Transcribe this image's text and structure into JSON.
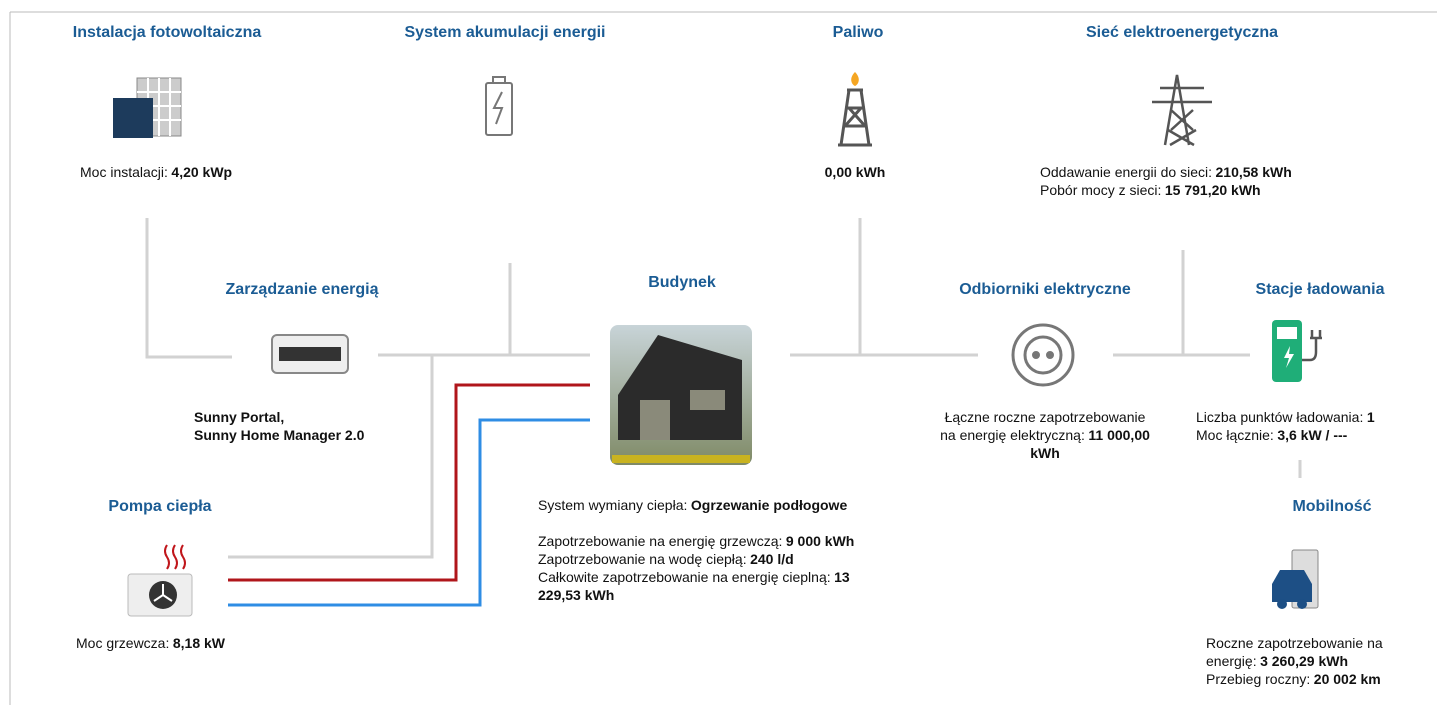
{
  "nodes": [
    {
      "title": "Instalacja fotowoltaiczna",
      "lines": [
        {
          "label": "Moc instalacji:",
          "value": "4,20 kWp"
        }
      ]
    },
    {
      "title": "System akumulacji energii"
    },
    {
      "title": "Paliwo",
      "lines": [
        {
          "value": "0,00 kWh"
        }
      ]
    },
    {
      "title": "Sieć elektroenergetyczna",
      "lines": [
        {
          "label": "Oddawanie energii do sieci:",
          "value": "210,58 kWh"
        },
        {
          "label": "Pobór mocy z sieci:",
          "value": "15 791,20 kWh"
        }
      ]
    },
    {
      "title": "Zarządzanie energią",
      "lines": [
        {
          "value": "Sunny Portal,"
        },
        {
          "value": "Sunny Home Manager 2.0"
        }
      ]
    },
    {
      "title": "Budynek",
      "lines": [
        {
          "label": "System wymiany ciepła:",
          "value": "Ogrzewanie podłogowe"
        },
        {
          "label": "Zapotrzebowanie na energię grzewczą:",
          "value": "9 000 kWh"
        },
        {
          "label": "Zapotrzebowanie na wodę ciepłą:",
          "value": "240 l/d"
        },
        {
          "label": "Całkowite zapotrzebowanie na energię cieplną:",
          "value": "13 229,53 kWh"
        }
      ]
    },
    {
      "title": "Odbiorniki elektryczne",
      "lines": [
        {
          "label": "Łączne roczne zapotrzebowanie na energię elektryczną:",
          "value": "11 000,00 kWh"
        }
      ]
    },
    {
      "title": "Stacje ładowania",
      "lines": [
        {
          "label": "Liczba punktów ładowania:",
          "value": "1"
        },
        {
          "label": "Moc łącznie:",
          "value": "3,6 kW / ---"
        }
      ]
    },
    {
      "title": "Mobilność",
      "lines": [
        {
          "label": "Roczne zapotrzebowanie na energię:",
          "value": "3 260,29 kWh"
        },
        {
          "label": "Przebieg roczny:",
          "value": "20 002 km"
        }
      ]
    },
    {
      "title": "Pompa ciepła",
      "lines": [
        {
          "label": "Moc grzewcza:",
          "value": "8,18 kW"
        }
      ]
    }
  ]
}
